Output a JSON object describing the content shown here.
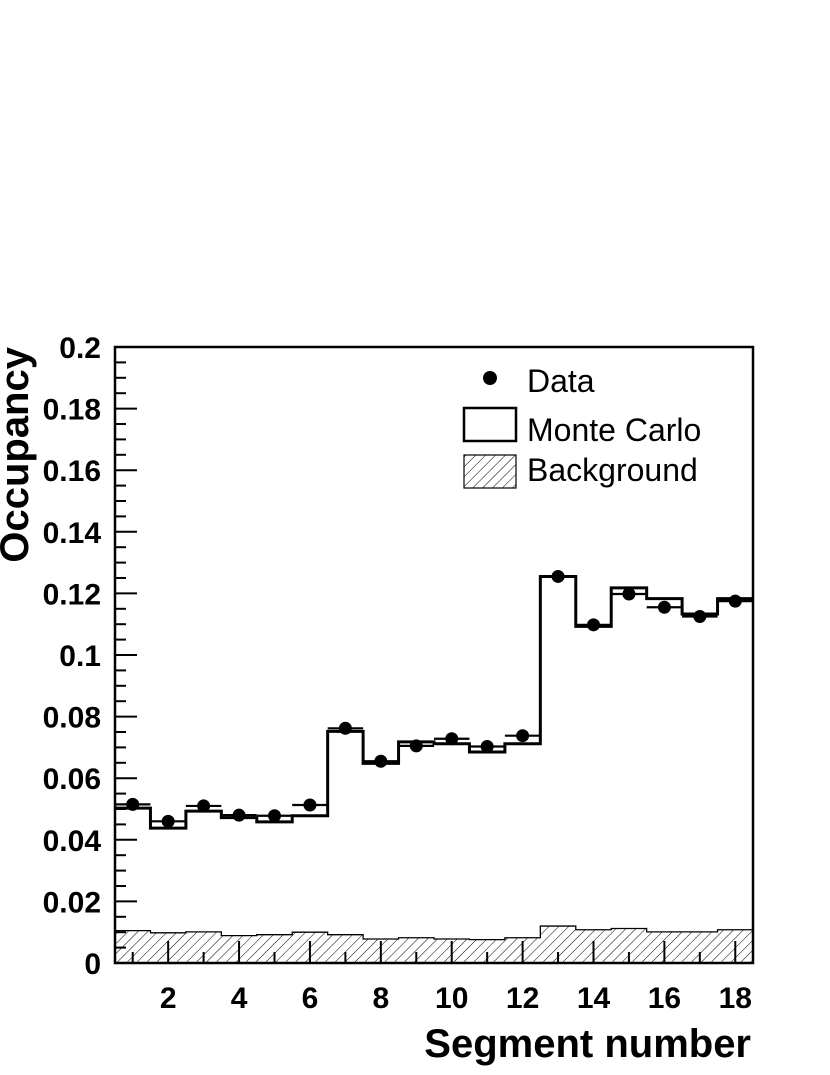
{
  "chart_data": {
    "type": "histogram",
    "xlabel": "Segment number",
    "ylabel": "Occupancy",
    "xlim": [
      0.5,
      18.5
    ],
    "ylim": [
      0,
      0.2
    ],
    "x_major_ticks": [
      2,
      4,
      6,
      8,
      10,
      12,
      14,
      16,
      18
    ],
    "y_major_ticks": [
      0,
      0.02,
      0.04,
      0.06,
      0.08,
      0.1,
      0.12,
      0.14,
      0.16,
      0.18,
      0.2
    ],
    "x_tick_labels": [
      "2",
      "4",
      "6",
      "8",
      "10",
      "12",
      "14",
      "16",
      "18"
    ],
    "y_tick_labels": [
      "0",
      "0.02",
      "0.04",
      "0.06",
      "0.08",
      "0.1",
      "0.12",
      "0.14",
      "0.16",
      "0.18",
      "0.2"
    ],
    "grid": false,
    "legend_position": "top-right",
    "x": [
      1,
      2,
      3,
      4,
      5,
      6,
      7,
      8,
      9,
      10,
      11,
      12,
      13,
      14,
      15,
      16,
      17,
      18
    ],
    "series": [
      {
        "name": "Data",
        "style": "points",
        "values": [
          0.0515,
          0.046,
          0.051,
          0.048,
          0.0478,
          0.0513,
          0.0762,
          0.0655,
          0.0705,
          0.0728,
          0.0703,
          0.0738,
          0.1255,
          0.1098,
          0.1198,
          0.1155,
          0.1125,
          0.1175
        ]
      },
      {
        "name": "Monte Carlo",
        "style": "step",
        "values": [
          0.0503,
          0.0438,
          0.0493,
          0.0472,
          0.0458,
          0.0478,
          0.0752,
          0.0648,
          0.0718,
          0.0712,
          0.0685,
          0.0712,
          0.1255,
          0.1093,
          0.1218,
          0.1183,
          0.1133,
          0.1183
        ]
      },
      {
        "name": "Background",
        "style": "hatched-step",
        "values": [
          0.0105,
          0.0098,
          0.0101,
          0.0089,
          0.0092,
          0.01,
          0.0092,
          0.0078,
          0.0082,
          0.0078,
          0.0076,
          0.0082,
          0.012,
          0.0108,
          0.0112,
          0.0101,
          0.0101,
          0.0108
        ]
      }
    ]
  }
}
